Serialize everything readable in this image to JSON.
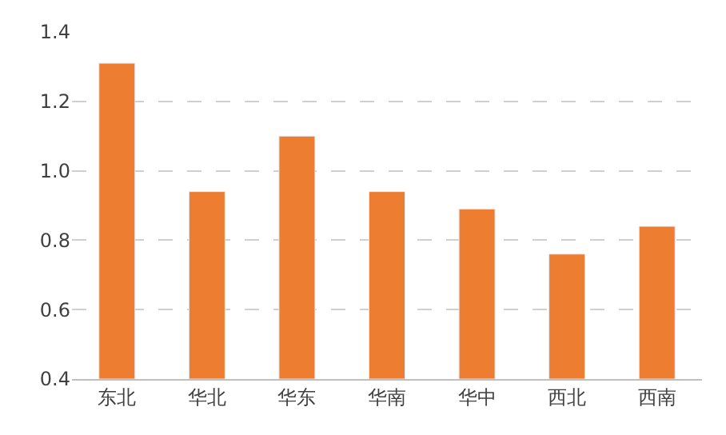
{
  "chart_data": {
    "type": "bar",
    "categories": [
      "东北",
      "华北",
      "华东",
      "华南",
      "华中",
      "西北",
      "西南"
    ],
    "values": [
      1.31,
      0.94,
      1.1,
      0.94,
      0.89,
      0.76,
      0.84
    ],
    "color": "#ed7d31",
    "ylim": [
      0.4,
      1.4
    ],
    "yticks": [
      {
        "value": 0.4,
        "label": "0.4"
      },
      {
        "value": 0.6,
        "label": "0.6"
      },
      {
        "value": 0.8,
        "label": "0.8"
      },
      {
        "value": 1.0,
        "label": "1.0"
      },
      {
        "value": 1.2,
        "label": "1.2"
      },
      {
        "value": 1.4,
        "label": "1.4"
      }
    ],
    "grid": "y"
  }
}
